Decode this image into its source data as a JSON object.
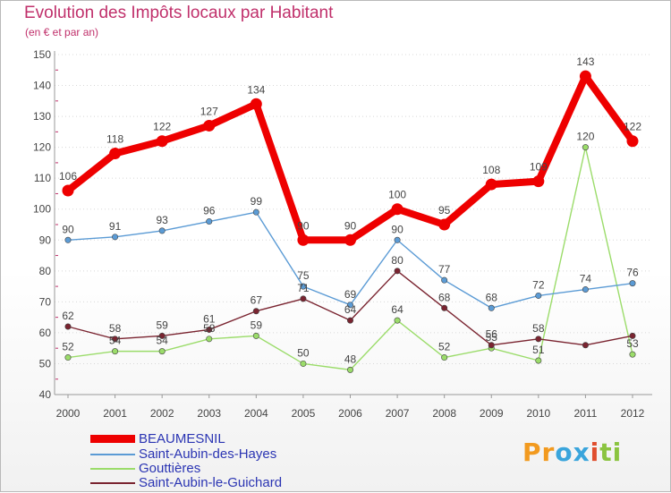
{
  "chart_data": {
    "type": "line",
    "title": "Evolution des Impôts locaux par Habitant",
    "subtitle": "(en € et par an)",
    "x": [
      "2000",
      "2001",
      "2002",
      "2003",
      "2004",
      "2005",
      "2006",
      "2007",
      "2008",
      "2009",
      "2010",
      "2011",
      "2012"
    ],
    "ylim": [
      40,
      150
    ],
    "yticks": [
      40,
      50,
      60,
      70,
      80,
      90,
      100,
      110,
      120,
      130,
      140,
      150
    ],
    "grid": "horizontal",
    "series": [
      {
        "name": "BEAUMESNIL",
        "color": "#ee0000",
        "emphasis": true,
        "values": [
          106,
          118,
          122,
          127,
          134,
          90,
          90,
          100,
          95,
          108,
          109,
          143,
          122
        ]
      },
      {
        "name": "Saint-Aubin-des-Hayes",
        "color": "#5b9bd5",
        "values": [
          90,
          91,
          93,
          96,
          99,
          75,
          69,
          90,
          77,
          68,
          72,
          74,
          76
        ]
      },
      {
        "name": "Gouttières",
        "color": "#9bdc6a",
        "values": [
          52,
          54,
          54,
          58,
          59,
          50,
          48,
          64,
          52,
          55,
          51,
          120,
          53
        ]
      },
      {
        "name": "Saint-Aubin-le-Guichard",
        "color": "#7a2430",
        "values": [
          62,
          58,
          59,
          61,
          67,
          71,
          64,
          80,
          68,
          56,
          58,
          56,
          59
        ]
      }
    ],
    "data_labels": [
      {
        "series": 0,
        "indices": [
          0,
          1,
          2,
          3,
          4,
          5,
          6,
          7,
          8,
          9,
          10,
          11,
          12
        ]
      },
      {
        "series": 1,
        "indices": [
          0,
          1,
          2,
          3,
          4,
          5,
          6,
          7,
          8,
          9,
          10,
          11,
          12
        ]
      },
      {
        "series": 2,
        "indices": [
          0,
          1,
          2,
          3,
          4,
          5,
          6,
          7,
          8,
          9,
          10,
          11,
          12
        ]
      },
      {
        "series": 3,
        "indices": [
          0,
          1,
          2,
          3,
          4,
          5,
          6,
          7,
          8,
          9,
          10
        ]
      }
    ]
  },
  "legend": {
    "position": "bottom-left",
    "items": [
      "BEAUMESNIL",
      "Saint-Aubin-des-Hayes",
      "Gouttières",
      "Saint-Aubin-le-Guichard"
    ]
  },
  "logo": {
    "letters": [
      "P",
      "r",
      "o",
      "x",
      "i",
      "t",
      "i"
    ],
    "colors": [
      "#f29a1f",
      "#f29a1f",
      "#3aa5dc",
      "#3aa5dc",
      "#e04e2e",
      "#8bc440",
      "#8bc440"
    ]
  }
}
